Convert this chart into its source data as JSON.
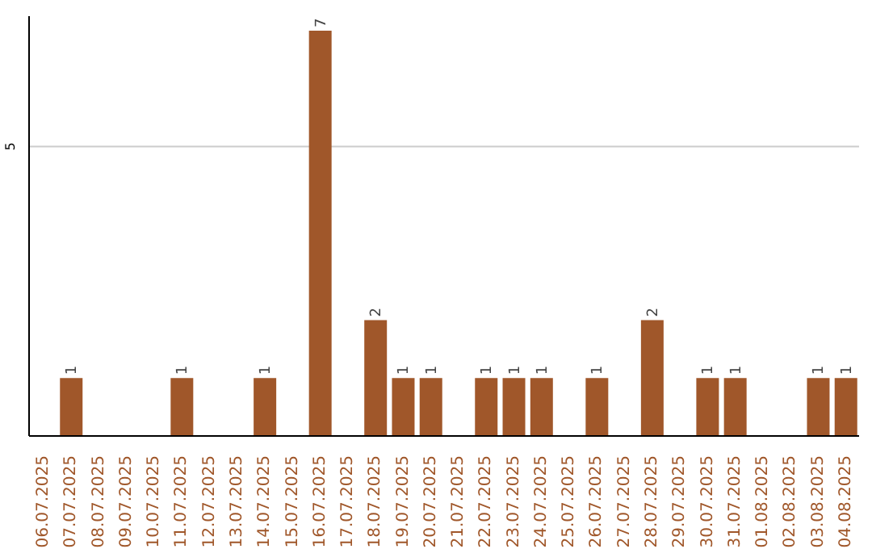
{
  "chart_data": {
    "type": "bar",
    "categories": [
      "06.07.2025",
      "07.07.2025",
      "08.07.2025",
      "09.07.2025",
      "10.07.2025",
      "11.07.2025",
      "12.07.2025",
      "13.07.2025",
      "14.07.2025",
      "15.07.2025",
      "16.07.2025",
      "17.07.2025",
      "18.07.2025",
      "19.07.2025",
      "20.07.2025",
      "21.07.2025",
      "22.07.2025",
      "23.07.2025",
      "24.07.2025",
      "25.07.2025",
      "26.07.2025",
      "27.07.2025",
      "28.07.2025",
      "29.07.2025",
      "30.07.2025",
      "31.07.2025",
      "01.08.2025",
      "02.08.2025",
      "03.08.2025",
      "04.08.2025"
    ],
    "values": [
      0,
      1,
      0,
      0,
      0,
      1,
      0,
      0,
      1,
      0,
      7,
      0,
      2,
      1,
      1,
      0,
      1,
      1,
      1,
      0,
      1,
      0,
      2,
      0,
      1,
      1,
      0,
      0,
      1,
      1
    ],
    "value_labels": [
      null,
      "1",
      null,
      null,
      null,
      "1",
      null,
      null,
      "1",
      null,
      "7",
      null,
      "2",
      "1",
      "1",
      null,
      "1",
      "1",
      "1",
      null,
      "1",
      null,
      "2",
      null,
      "1",
      "1",
      null,
      null,
      "1",
      "1"
    ],
    "color": "#a0572a",
    "ylim": [
      0,
      7.25
    ],
    "yticks": [
      5
    ],
    "grid": "y"
  }
}
